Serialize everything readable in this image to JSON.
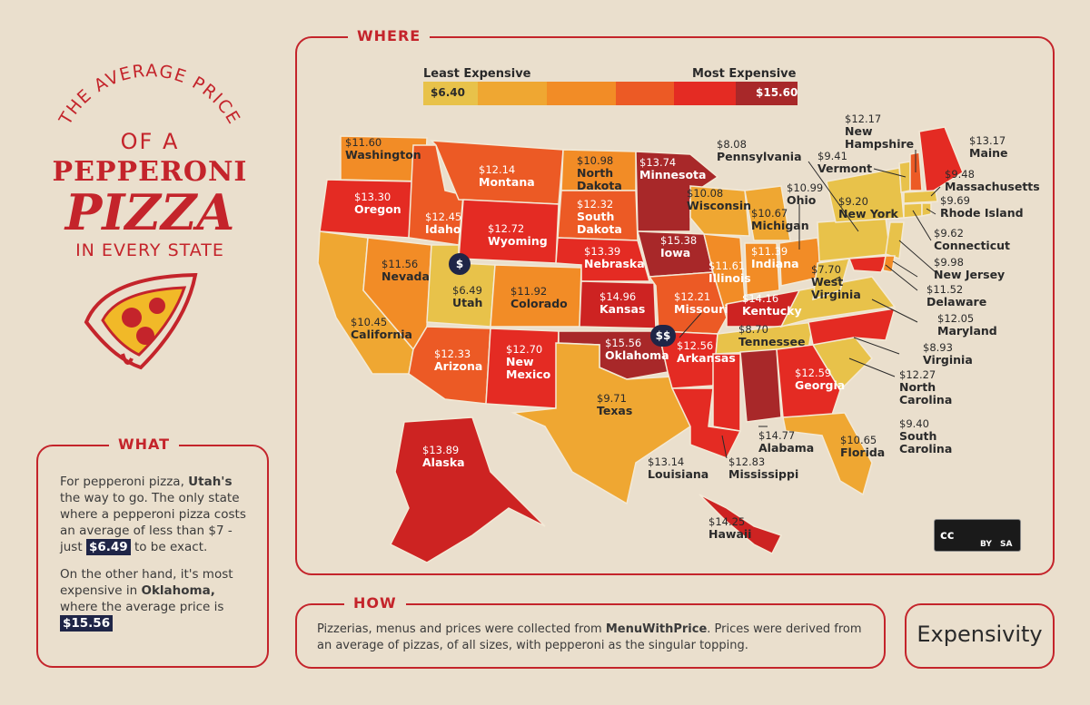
{
  "title": {
    "arc": "THE AVERAGE PRICE",
    "of": "OF A",
    "pepperoni": "PEPPERONI",
    "pizza": "PIZZA",
    "every": "IN EVERY STATE"
  },
  "sections": {
    "where": "WHERE",
    "what": "WHAT",
    "how": "HOW"
  },
  "legend": {
    "least_label": "Least Expensive",
    "most_label": "Most Expensive",
    "min_value": "$6.40",
    "max_value": "$15.60",
    "colors": [
      "#e8c24a",
      "#efa732",
      "#f28c26",
      "#ec5a25",
      "#e42b23",
      "#cd2322",
      "#a82829"
    ]
  },
  "what": {
    "p1_a": "For pepperoni pizza,",
    "p1_b": "Utah's",
    "p1_c": "the way to go. The only state where a pepperoni pizza costs an average of less than $7 - just",
    "p1_price": "$6.49",
    "p1_d": "to be exact.",
    "p2_a": "On the other hand, it's most expensive in",
    "p2_b": "Oklahoma,",
    "p2_c": "where the average price is",
    "p2_price": "$15.56"
  },
  "how": {
    "a": "Pizzerias, menus and prices were collected from",
    "b": "MenuWithPrice",
    "c": ". Prices were derived from an average of pizzas, of all sizes, with pepperoni as the singular topping."
  },
  "brand": "Expensivity",
  "badges": {
    "cheap": "$",
    "expensive": "$$"
  },
  "license": {
    "cc": "cc",
    "by": "BY",
    "sa": "SA"
  },
  "states": [
    {
      "price": "$11.60",
      "name": "Washington"
    },
    {
      "price": "$13.30",
      "name": "Oregon"
    },
    {
      "price": "$10.45",
      "name": "California"
    },
    {
      "price": "$11.56",
      "name": "Nevada"
    },
    {
      "price": "$12.45",
      "name": "Idaho"
    },
    {
      "price": "$12.14",
      "name": "Montana"
    },
    {
      "price": "$12.72",
      "name": "Wyoming"
    },
    {
      "price": "$6.49",
      "name": "Utah"
    },
    {
      "price": "$12.33",
      "name": "Arizona"
    },
    {
      "price": "$11.92",
      "name": "Colorado"
    },
    {
      "price": "$12.70",
      "name": "New\nMexico"
    },
    {
      "price": "$10.98",
      "name": "North\nDakota"
    },
    {
      "price": "$12.32",
      "name": "South\nDakota"
    },
    {
      "price": "$13.39",
      "name": "Nebraska"
    },
    {
      "price": "$14.96",
      "name": "Kansas"
    },
    {
      "price": "$15.56",
      "name": "Oklahoma"
    },
    {
      "price": "$9.71",
      "name": "Texas"
    },
    {
      "price": "$13.74",
      "name": "Minnesota"
    },
    {
      "price": "$15.38",
      "name": "Iowa"
    },
    {
      "price": "$12.21",
      "name": "Missouri"
    },
    {
      "price": "$12.56",
      "name": "Arkansas"
    },
    {
      "price": "$10.08",
      "name": "Wisconsin"
    },
    {
      "price": "$11.61",
      "name": "Illinois"
    },
    {
      "price": "$10.67",
      "name": "Michigan"
    },
    {
      "price": "$11.39",
      "name": "Indiana"
    },
    {
      "price": "$10.99",
      "name": "Ohio"
    },
    {
      "price": "$14.16",
      "name": "Kentucky"
    },
    {
      "price": "$8.70",
      "name": "Tennessee"
    },
    {
      "price": "$7.70",
      "name": "West\nVirginia"
    },
    {
      "price": "$13.89",
      "name": "Alaska"
    },
    {
      "price": "$14.25",
      "name": "Hawaii"
    },
    {
      "price": "$13.14",
      "name": "Louisiana"
    },
    {
      "price": "$12.83",
      "name": "Mississippi"
    },
    {
      "price": "$14.77",
      "name": "Alabama"
    },
    {
      "price": "$12.59",
      "name": "Georgia"
    },
    {
      "price": "$10.65",
      "name": "Florida"
    },
    {
      "price": "$9.40",
      "name": "South\nCarolina"
    },
    {
      "price": "$12.27",
      "name": "North\nCarolina"
    },
    {
      "price": "$8.93",
      "name": "Virginia"
    },
    {
      "price": "$12.05",
      "name": "Maryland"
    },
    {
      "price": "$11.52",
      "name": "Delaware"
    },
    {
      "price": "$9.98",
      "name": "New Jersey"
    },
    {
      "price": "$9.62",
      "name": "Connecticut"
    },
    {
      "price": "$9.69",
      "name": "Rhode Island"
    },
    {
      "price": "$9.48",
      "name": "Massachusetts"
    },
    {
      "price": "$13.17",
      "name": "Maine"
    },
    {
      "price": "$12.17",
      "name": "New\nHampshire"
    },
    {
      "price": "$9.41",
      "name": "Vermont"
    },
    {
      "price": "$9.20",
      "name": "New York"
    },
    {
      "price": "$8.08",
      "name": "Pennsylvania"
    }
  ]
}
